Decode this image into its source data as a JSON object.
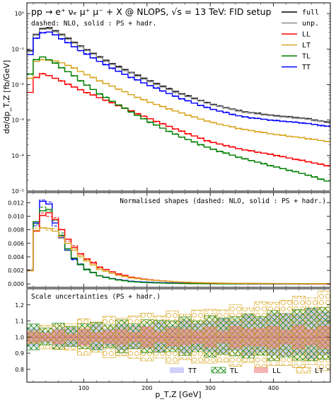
{
  "chart_data": [
    {
      "type": "line",
      "title": "pp → e⁺ νₑ μ⁺ μ⁻ + X @ NLOPS, √s = 13 TeV: FID setup",
      "subtitle": "dashed: NLO, solid : PS + hadr.",
      "ylabel": "dσ/dp_T,Z [fb/GeV]",
      "yscale": "log",
      "ylim": [
        1e-05,
        2
      ],
      "xlim": [
        10,
        490
      ],
      "ytick_labels": [
        "10⁻⁵",
        "10⁻⁴",
        "10⁻³",
        "10⁻²",
        "10⁻¹",
        "10⁰"
      ],
      "legend": "top-right",
      "series": [
        {
          "name": "full",
          "color": "#000000",
          "x": [
            15,
            25,
            35,
            45,
            55,
            65,
            75,
            85,
            100,
            125,
            150,
            175,
            200,
            250,
            300,
            350,
            400,
            450,
            490
          ],
          "values": [
            0.09,
            0.26,
            0.38,
            0.39,
            0.33,
            0.26,
            0.2,
            0.155,
            0.108,
            0.06,
            0.035,
            0.022,
            0.0138,
            0.0059,
            0.0029,
            0.00175,
            0.00135,
            0.00112,
            0.00085
          ]
        },
        {
          "name": "unp.",
          "color": "#8c8c8c",
          "x": [
            15,
            25,
            35,
            45,
            55,
            65,
            75,
            85,
            100,
            125,
            150,
            175,
            200,
            250,
            300,
            350,
            400,
            450,
            490
          ],
          "values": [
            0.085,
            0.25,
            0.36,
            0.37,
            0.31,
            0.245,
            0.19,
            0.148,
            0.103,
            0.057,
            0.033,
            0.021,
            0.013,
            0.0056,
            0.0028,
            0.0017,
            0.0013,
            0.00108,
            0.00082
          ]
        },
        {
          "name": "LL",
          "color": "#ff0000",
          "x": [
            15,
            25,
            35,
            45,
            55,
            65,
            75,
            85,
            100,
            125,
            150,
            175,
            200,
            250,
            300,
            350,
            400,
            450,
            490
          ],
          "values": [
            0.006,
            0.016,
            0.02,
            0.018,
            0.015,
            0.0125,
            0.0103,
            0.0085,
            0.0065,
            0.0043,
            0.0028,
            0.0018,
            0.00118,
            0.00052,
            0.000245,
            0.00015,
            0.000105,
            7e-05,
            5e-05
          ]
        },
        {
          "name": "LT",
          "color": "#daa520",
          "x": [
            15,
            25,
            35,
            45,
            55,
            65,
            75,
            85,
            100,
            125,
            150,
            175,
            200,
            250,
            300,
            350,
            400,
            450,
            490
          ],
          "values": [
            0.015,
            0.045,
            0.05,
            0.049,
            0.046,
            0.041,
            0.035,
            0.029,
            0.021,
            0.0128,
            0.0082,
            0.0052,
            0.0034,
            0.00168,
            0.00088,
            0.00056,
            0.0004,
            0.00031,
            0.000245
          ]
        },
        {
          "name": "TL",
          "color": "#008000",
          "x": [
            15,
            25,
            35,
            45,
            55,
            65,
            75,
            85,
            100,
            125,
            150,
            175,
            200,
            250,
            300,
            350,
            400,
            450,
            490
          ],
          "values": [
            0.02,
            0.05,
            0.06,
            0.05,
            0.04,
            0.03,
            0.023,
            0.0175,
            0.011,
            0.0055,
            0.003,
            0.0017,
            0.00097,
            0.00036,
            0.00016,
            8.5e-05,
            5e-05,
            3e-05,
            1.8e-05
          ]
        },
        {
          "name": "TT",
          "color": "#0000ff",
          "x": [
            15,
            25,
            35,
            45,
            55,
            65,
            75,
            85,
            100,
            125,
            150,
            175,
            200,
            250,
            300,
            350,
            400,
            450,
            490
          ],
          "values": [
            0.07,
            0.2,
            0.29,
            0.3,
            0.25,
            0.195,
            0.15,
            0.116,
            0.08,
            0.045,
            0.026,
            0.016,
            0.0102,
            0.0043,
            0.0021,
            0.00125,
            0.00098,
            0.00082,
            0.00065
          ]
        }
      ]
    },
    {
      "type": "line",
      "title": "Normalised shapes (dashed: NLO, solid : PS + hadr.)",
      "ylim": [
        -0.0005,
        0.0135
      ],
      "xlim": [
        10,
        490
      ],
      "ytick_labels": [
        "0.000",
        "0.002",
        "0.004",
        "0.006",
        "0.008",
        "0.010",
        "0.012"
      ],
      "series": [
        {
          "name": "TT",
          "color": "#0000ff",
          "x": [
            15,
            25,
            35,
            45,
            55,
            65,
            75,
            85,
            100,
            125,
            150,
            175,
            200,
            250,
            300,
            350,
            400,
            450,
            490
          ],
          "values": [
            0.002,
            0.009,
            0.0122,
            0.0118,
            0.009,
            0.0068,
            0.005,
            0.0037,
            0.0024,
            0.0012,
            0.0007,
            0.0004,
            0.00026,
            0.00011,
            5e-05,
            3e-05,
            2e-05,
            1.5e-05,
            1e-05
          ]
        },
        {
          "name": "TL",
          "color": "#008000",
          "x": [
            15,
            25,
            35,
            45,
            55,
            65,
            75,
            85,
            100,
            125,
            150,
            175,
            200,
            250,
            300,
            350,
            400,
            450,
            490
          ],
          "values": [
            0.002,
            0.0092,
            0.0108,
            0.011,
            0.0095,
            0.0072,
            0.0052,
            0.0038,
            0.0024,
            0.0012,
            0.00065,
            0.00035,
            0.0002,
            7e-05,
            3e-05,
            1.5e-05,
            1e-05,
            5e-06,
            4e-06
          ]
        },
        {
          "name": "LL",
          "color": "#ff0000",
          "x": [
            15,
            25,
            35,
            45,
            55,
            65,
            75,
            85,
            100,
            125,
            150,
            175,
            200,
            250,
            300,
            350,
            400,
            450,
            490
          ],
          "values": [
            0.002,
            0.0078,
            0.0101,
            0.0105,
            0.0095,
            0.008,
            0.0066,
            0.0054,
            0.004,
            0.0025,
            0.0016,
            0.001,
            0.00065,
            0.00028,
            0.00013,
            8e-05,
            5e-05,
            3e-05,
            2e-05
          ]
        },
        {
          "name": "LT",
          "color": "#daa520",
          "x": [
            15,
            25,
            35,
            45,
            55,
            65,
            75,
            85,
            100,
            125,
            150,
            175,
            200,
            250,
            300,
            350,
            400,
            450,
            490
          ],
          "values": [
            0.002,
            0.0079,
            0.0083,
            0.0082,
            0.0078,
            0.007,
            0.006,
            0.005,
            0.0037,
            0.0022,
            0.0014,
            0.0009,
            0.0006,
            0.0003,
            0.00015,
            9e-05,
            7e-05,
            5e-05,
            4e-05
          ]
        }
      ]
    },
    {
      "type": "area",
      "title": "Scale uncertainties (PS + hadr.)",
      "xlabel": "p_T,Z [GeV]",
      "ylim": [
        0.72,
        1.3
      ],
      "xlim": [
        10,
        490
      ],
      "xtick_labels": [
        "100",
        "200",
        "300",
        "400"
      ],
      "ytick_labels": [
        "0.8",
        "0.9",
        "1.0",
        "1.1",
        "1.2"
      ],
      "legend": "bottom-right",
      "bands": [
        {
          "name": "TT",
          "color": "#aaaaff",
          "x": [
            10,
            50,
            100,
            150,
            200,
            250,
            300,
            350,
            400,
            450,
            490
          ],
          "lower": [
            0.96,
            0.95,
            0.94,
            0.93,
            0.92,
            0.91,
            0.91,
            0.9,
            0.89,
            0.88,
            0.87
          ],
          "upper": [
            1.04,
            1.05,
            1.06,
            1.07,
            1.08,
            1.09,
            1.1,
            1.12,
            1.14,
            1.16,
            1.18
          ]
        },
        {
          "name": "TL",
          "color": "#008000",
          "x": [
            10,
            50,
            100,
            150,
            200,
            250,
            300,
            350,
            400,
            450,
            490
          ],
          "lower": [
            0.93,
            0.94,
            0.93,
            0.92,
            0.91,
            0.9,
            0.89,
            0.88,
            0.87,
            0.86,
            0.85
          ],
          "upper": [
            1.07,
            1.07,
            1.08,
            1.09,
            1.1,
            1.11,
            1.12,
            1.13,
            1.15,
            1.17,
            1.2
          ]
        },
        {
          "name": "LL",
          "color": "#f08080",
          "x": [
            10,
            50,
            100,
            150,
            200,
            250,
            300,
            350,
            400,
            450,
            490
          ],
          "lower": [
            0.96,
            0.97,
            0.96,
            0.96,
            0.95,
            0.95,
            0.95,
            0.94,
            0.94,
            0.94,
            0.93
          ],
          "upper": [
            1.04,
            1.03,
            1.04,
            1.04,
            1.05,
            1.05,
            1.05,
            1.06,
            1.06,
            1.06,
            1.07
          ]
        },
        {
          "name": "LT",
          "color": "#daa520",
          "x": [
            10,
            50,
            100,
            150,
            200,
            250,
            300,
            350,
            400,
            450,
            490
          ],
          "lower": [
            0.95,
            0.93,
            0.9,
            0.88,
            0.86,
            0.85,
            0.84,
            0.83,
            0.82,
            0.82,
            0.8
          ],
          "upper": [
            1.05,
            1.07,
            1.1,
            1.12,
            1.14,
            1.15,
            1.17,
            1.19,
            1.22,
            1.25,
            1.28
          ]
        }
      ]
    }
  ]
}
